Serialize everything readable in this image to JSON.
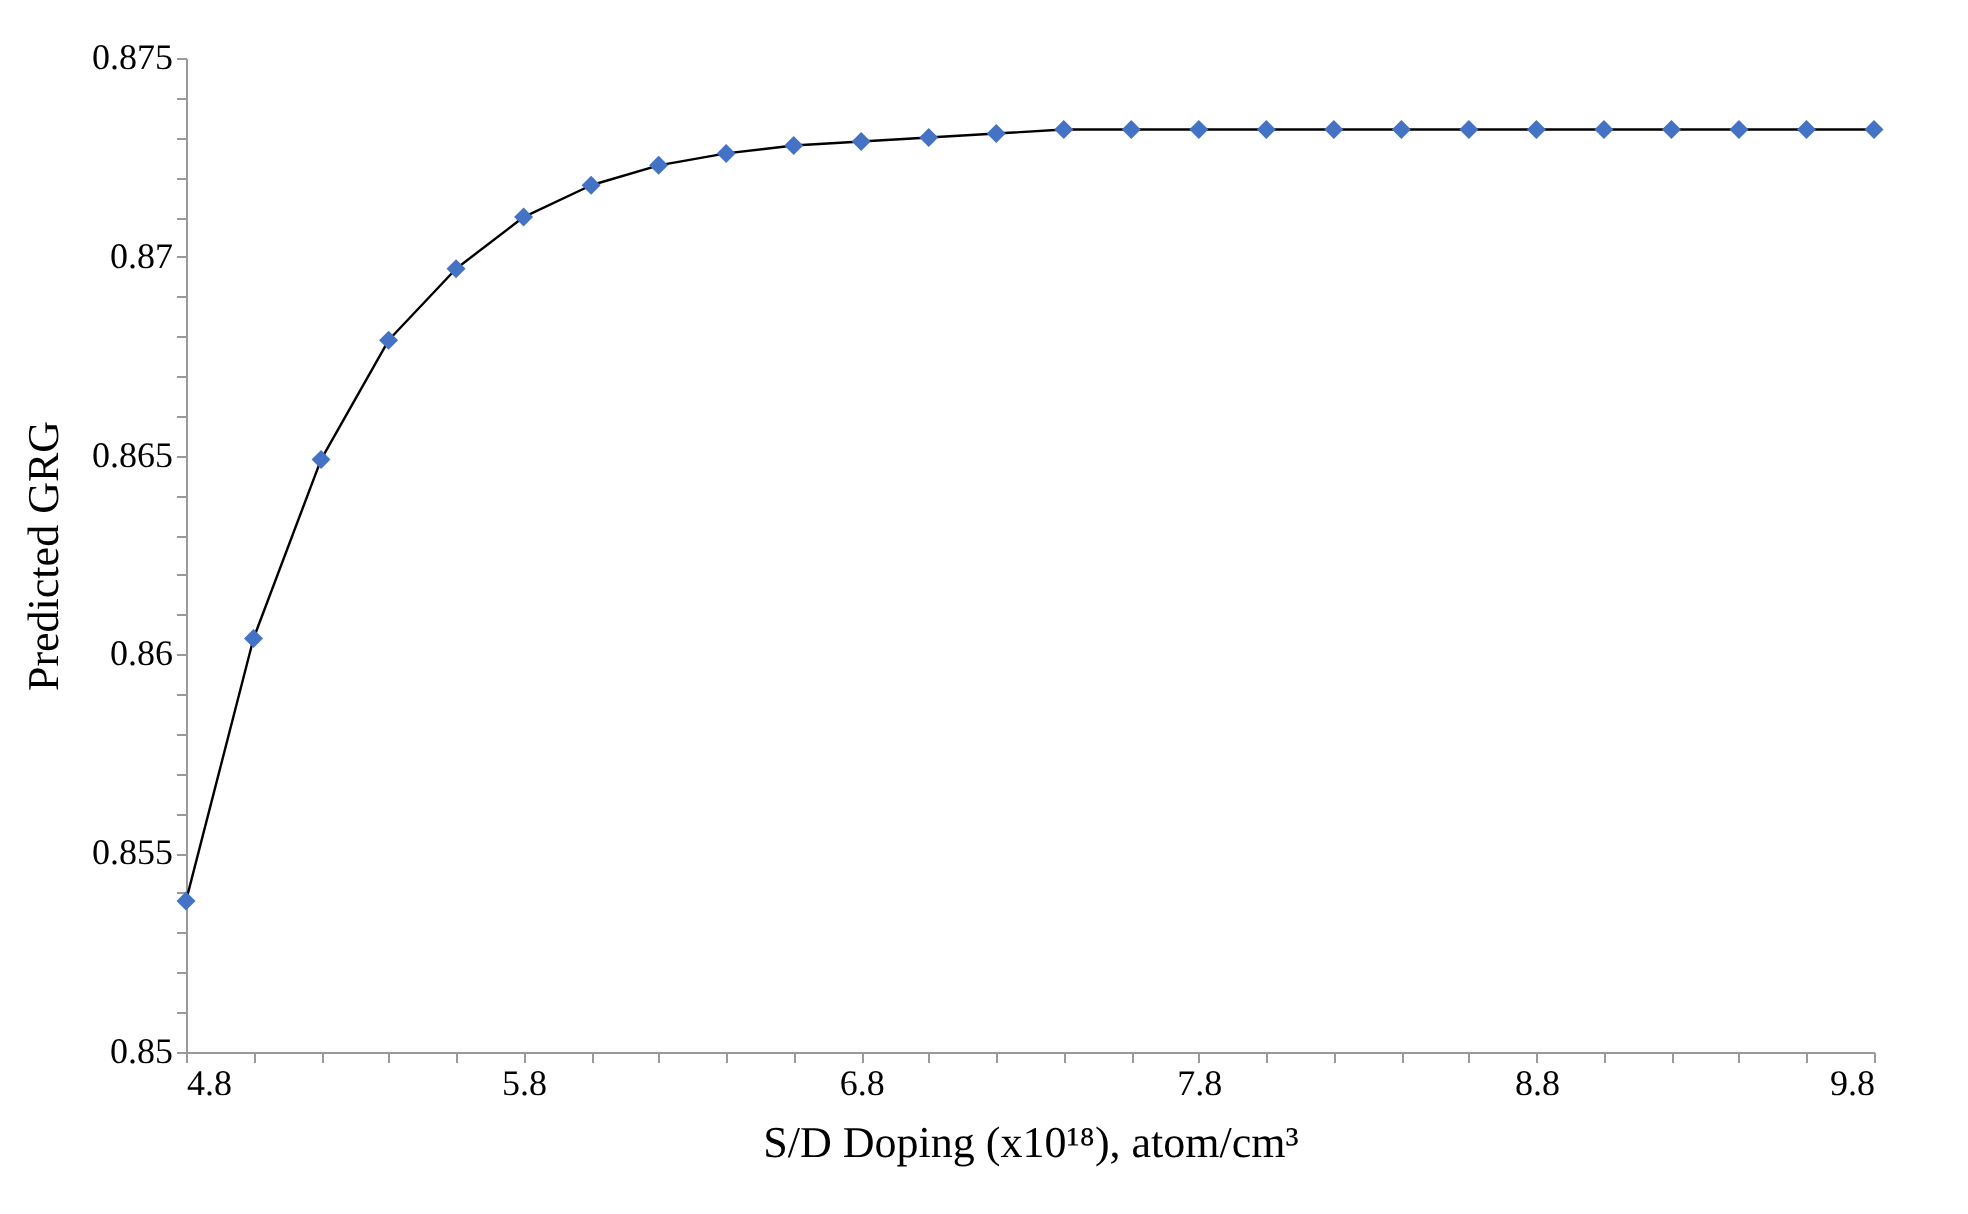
{
  "chart_data": {
    "type": "line",
    "xlabel": "S/D Doping (x10¹⁸), atom/cm³",
    "ylabel": "Predicted GRG",
    "x": [
      4.8,
      5.0,
      5.2,
      5.4,
      5.6,
      5.8,
      6.0,
      6.2,
      6.4,
      6.6,
      6.8,
      7.0,
      7.2,
      7.4,
      7.6,
      7.8,
      8.0,
      8.2,
      8.4,
      8.6,
      8.8,
      9.0,
      9.2,
      9.4,
      9.6,
      9.8
    ],
    "series": [
      {
        "color": "#4472c4",
        "values": [
          0.8538,
          0.8604,
          0.8649,
          0.8679,
          0.8697,
          0.871,
          0.8718,
          0.8723,
          0.8726,
          0.8728,
          0.8729,
          0.873,
          0.8731,
          0.8732,
          0.8732,
          0.8732,
          0.8732,
          0.8732,
          0.8732,
          0.8732,
          0.8732,
          0.8732,
          0.8732,
          0.8732,
          0.8732,
          0.8732
        ]
      }
    ],
    "xlim": [
      4.8,
      9.8
    ],
    "xticks": [
      4.8,
      {
        "value": 5.0,
        "label": null
      },
      {
        "value": 5.2,
        "label": null
      },
      {
        "value": 5.4,
        "label": null
      },
      {
        "value": 5.6,
        "label": null
      },
      5.8,
      {
        "value": 6.0,
        "label": null
      },
      {
        "value": 6.2,
        "label": null
      },
      {
        "value": 6.4,
        "label": null
      },
      {
        "value": 6.6,
        "label": null
      },
      6.8,
      {
        "value": 7.0,
        "label": null
      },
      {
        "value": 7.2,
        "label": null
      },
      {
        "value": 7.4,
        "label": null
      },
      {
        "value": 7.6,
        "label": null
      },
      7.8,
      {
        "value": 8.0,
        "label": null
      },
      {
        "value": 8.2,
        "label": null
      },
      {
        "value": 8.4,
        "label": null
      },
      {
        "value": 8.6,
        "label": null
      },
      8.8,
      {
        "value": 9.0,
        "label": null
      },
      {
        "value": 9.2,
        "label": null
      },
      {
        "value": 9.4,
        "label": null
      },
      {
        "value": 9.6,
        "label": null
      },
      9.8
    ],
    "ylim": [
      0.85,
      0.875
    ],
    "yticks": [
      0.85,
      {
        "value": 0.851,
        "label": null
      },
      {
        "value": 0.852,
        "label": null
      },
      {
        "value": 0.853,
        "label": null
      },
      {
        "value": 0.854,
        "label": null
      },
      0.855,
      {
        "value": 0.856,
        "label": null
      },
      {
        "value": 0.857,
        "label": null
      },
      {
        "value": 0.858,
        "label": null
      },
      {
        "value": 0.859,
        "label": null
      },
      0.86,
      {
        "value": 0.861,
        "label": null
      },
      {
        "value": 0.862,
        "label": null
      },
      {
        "value": 0.863,
        "label": null
      },
      {
        "value": 0.864,
        "label": null
      },
      0.865,
      {
        "value": 0.866,
        "label": null
      },
      {
        "value": 0.867,
        "label": null
      },
      {
        "value": 0.868,
        "label": null
      },
      {
        "value": 0.869,
        "label": null
      },
      0.87,
      {
        "value": 0.871,
        "label": null
      },
      {
        "value": 0.872,
        "label": null
      },
      {
        "value": 0.873,
        "label": null
      },
      {
        "value": 0.874,
        "label": null
      },
      0.875
    ],
    "grid": false,
    "marker": "diamond",
    "line_style": "solid"
  }
}
